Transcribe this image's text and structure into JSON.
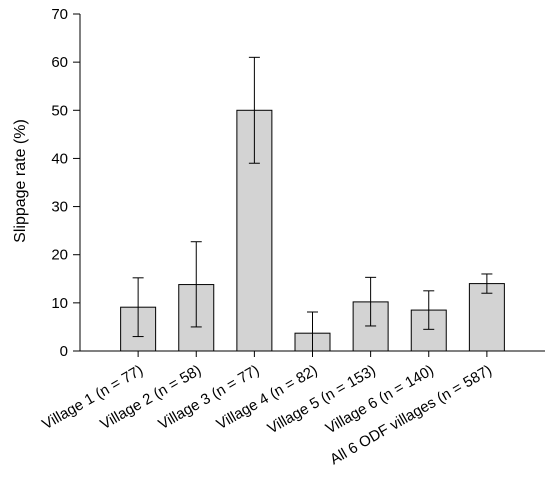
{
  "chart_data": {
    "type": "bar",
    "title": "",
    "xlabel": "",
    "ylabel": "Slippage rate (%)",
    "ylim": [
      0,
      70
    ],
    "yticks": [
      0,
      10,
      20,
      30,
      40,
      50,
      60,
      70
    ],
    "grid": false,
    "categories": [
      "Village 1 (n = 77)",
      "Village 2 (n = 58)",
      "Village 3 (n = 77)",
      "Village 4 (n = 82)",
      "Village 5 (n = 153)",
      "Village 6 (n = 140)",
      "All 6 ODF villages (n = 587)"
    ],
    "values": [
      9.1,
      13.8,
      50.0,
      3.7,
      10.2,
      8.5,
      14.0
    ],
    "error_low": [
      3.0,
      5.0,
      39.0,
      0.0,
      5.2,
      4.5,
      12.0
    ],
    "error_high": [
      15.2,
      22.7,
      61.0,
      8.1,
      15.3,
      12.5,
      16.0
    ],
    "bar_color": "#d3d3d3",
    "edge_color": "#000000"
  }
}
